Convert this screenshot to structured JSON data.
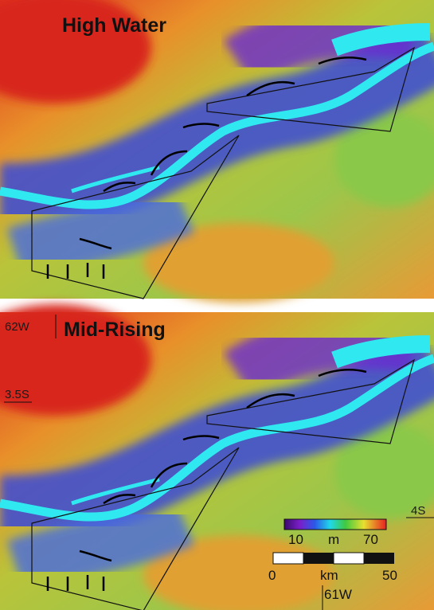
{
  "panels": [
    {
      "title": "High Water"
    },
    {
      "title": "Mid-Rising"
    }
  ],
  "coordinates": {
    "west_top": "62W",
    "lat_mid": "3.5S",
    "lat_low": "4S",
    "west_bottom": "61W"
  },
  "colorbar": {
    "min": "10",
    "unit": "m",
    "max": "70"
  },
  "scalebar": {
    "start": "0",
    "unit": "km",
    "end": "50"
  }
}
